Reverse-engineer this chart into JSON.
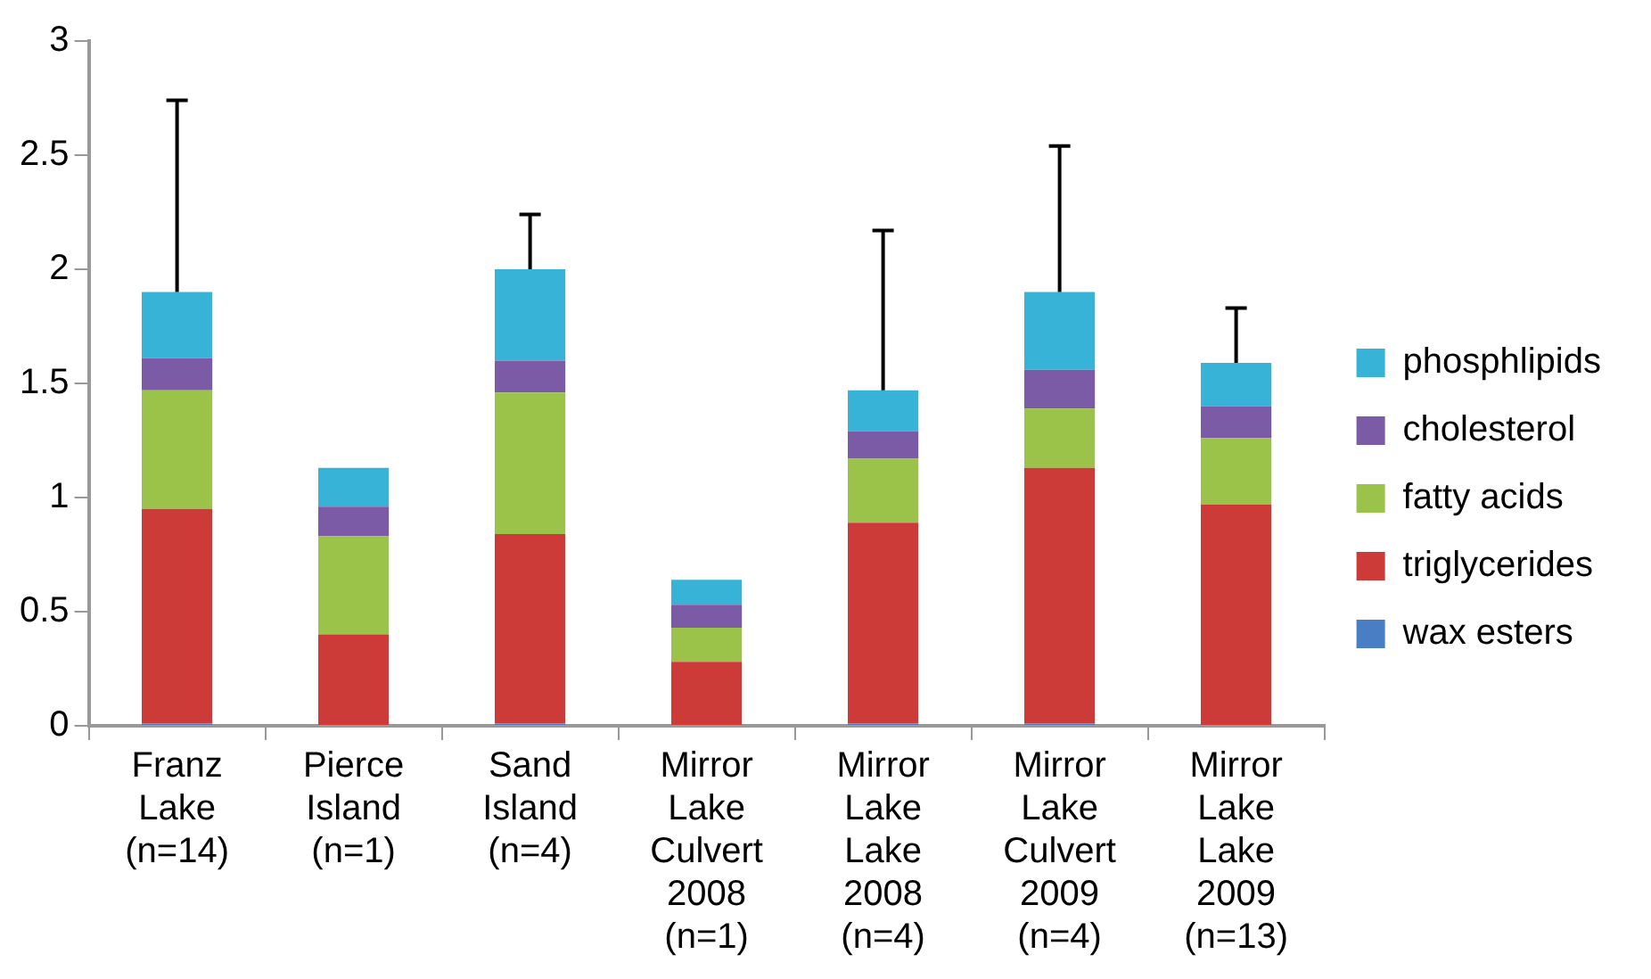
{
  "chart_data": {
    "type": "bar",
    "stacked": true,
    "categories": [
      "Franz Lake (n=14)",
      "Pierce Island (n=1)",
      "Sand Island (n=4)",
      "Mirror Lake Culvert 2008 (n=1)",
      "Mirror Lake Lake 2008 (n=4)",
      "Mirror Lake Culvert 2009 (n=4)",
      "Mirror Lake Lake 2009 (n=13)"
    ],
    "series": [
      {
        "name": "wax esters",
        "color": "#4a7ec4",
        "values": [
          0.01,
          0,
          0.01,
          0,
          0.01,
          0.01,
          0
        ]
      },
      {
        "name": "triglycerides",
        "color": "#cc3b37",
        "values": [
          0.94,
          0.4,
          0.83,
          0.28,
          0.88,
          1.12,
          0.97
        ]
      },
      {
        "name": "fatty acids",
        "color": "#9bc34a",
        "values": [
          0.52,
          0.43,
          0.62,
          0.15,
          0.28,
          0.26,
          0.29
        ]
      },
      {
        "name": "cholesterol",
        "color": "#7b5ba6",
        "values": [
          0.14,
          0.13,
          0.14,
          0.1,
          0.12,
          0.17,
          0.14
        ]
      },
      {
        "name": "phosphlipids",
        "color": "#36b3d6",
        "values": [
          0.29,
          0.17,
          0.4,
          0.11,
          0.18,
          0.34,
          0.19
        ],
        "errors": [
          [
            1.9,
            2.74
          ],
          null,
          [
            2.0,
            2.24
          ],
          null,
          [
            1.47,
            2.17
          ],
          [
            1.9,
            2.54
          ],
          [
            1.59,
            1.83
          ]
        ]
      }
    ],
    "ylim": [
      0,
      3
    ],
    "yticks": [
      0,
      0.5,
      1,
      1.5,
      2,
      2.5,
      3
    ],
    "grid": false,
    "legend": "right"
  }
}
